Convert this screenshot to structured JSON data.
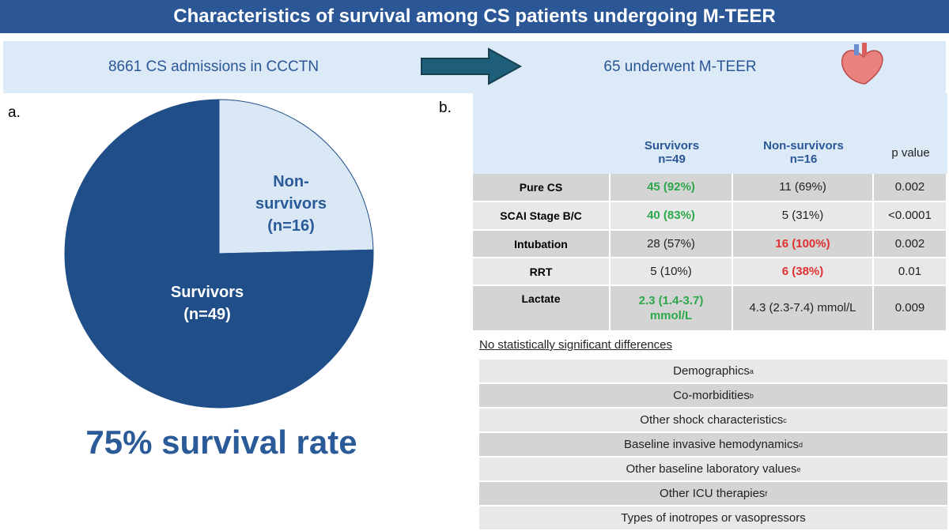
{
  "header": {
    "title": "Characteristics of survival among CS patients undergoing M-TEER",
    "left": "8661 CS admissions in CCCTN",
    "right": "65 underwent M-TEER"
  },
  "chart_data": {
    "type": "pie",
    "panel": "a.",
    "categories": [
      "Non-survivors",
      "Survivors"
    ],
    "values": [
      16,
      49
    ],
    "value_labels": [
      "(n=16)",
      "(n=49)"
    ],
    "colors": [
      "#dae8f5",
      "#1f4e88"
    ],
    "label_colors": [
      "#2a5b98",
      "#ffffff"
    ],
    "caption": "75% survival rate"
  },
  "table": {
    "panel": "b.",
    "columns": [
      [
        "Survivors",
        "n=49"
      ],
      [
        "Non-survivors",
        "n=16"
      ],
      [
        "p value"
      ]
    ],
    "rows": [
      {
        "label": "Pure CS",
        "cells": [
          {
            "text": "45 (92%)",
            "color": "#2ca84a",
            "bold": true
          },
          {
            "text": "11 (69%)",
            "color": "#222222",
            "bold": false
          },
          {
            "text": "0.002",
            "color": "#222222",
            "bold": false
          }
        ]
      },
      {
        "label": "SCAI Stage B/C",
        "cells": [
          {
            "text": "40 (83%)",
            "color": "#2ca84a",
            "bold": true
          },
          {
            "text": "5 (31%)",
            "color": "#222222",
            "bold": false
          },
          {
            "text": "<0.0001",
            "color": "#222222",
            "bold": false
          }
        ]
      },
      {
        "label": "Intubation",
        "cells": [
          {
            "text": "28 (57%)",
            "color": "#222222",
            "bold": false
          },
          {
            "text": "16 (100%)",
            "color": "#e03131",
            "bold": true
          },
          {
            "text": "0.002",
            "color": "#222222",
            "bold": false
          }
        ]
      },
      {
        "label": "RRT",
        "cells": [
          {
            "text": "5 (10%)",
            "color": "#222222",
            "bold": false
          },
          {
            "text": "6 (38%)",
            "color": "#e03131",
            "bold": true
          },
          {
            "text": "0.01",
            "color": "#222222",
            "bold": false
          }
        ]
      },
      {
        "label": "Lactate",
        "cells": [
          {
            "text": "2.3 (1.4-3.7) mmol/L",
            "color": "#2ca84a",
            "bold": true
          },
          {
            "text": "4.3 (2.3-7.4) mmol/L",
            "color": "#222222",
            "bold": false
          },
          {
            "text": "0.009",
            "color": "#222222",
            "bold": false
          }
        ]
      }
    ]
  },
  "nonsignificant": {
    "title": "No statistically significant differences",
    "items": [
      {
        "text": "Demographics",
        "note": "a"
      },
      {
        "text": "Co-morbidities",
        "note": "b"
      },
      {
        "text": "Other shock characteristics",
        "note": "c"
      },
      {
        "text": "Baseline invasive hemodynamics",
        "note": "d"
      },
      {
        "text": "Other baseline laboratory values",
        "note": "e"
      },
      {
        "text": "Other ICU therapies",
        "note": "f"
      },
      {
        "text": "Types of inotropes or vasopressors"
      }
    ]
  }
}
